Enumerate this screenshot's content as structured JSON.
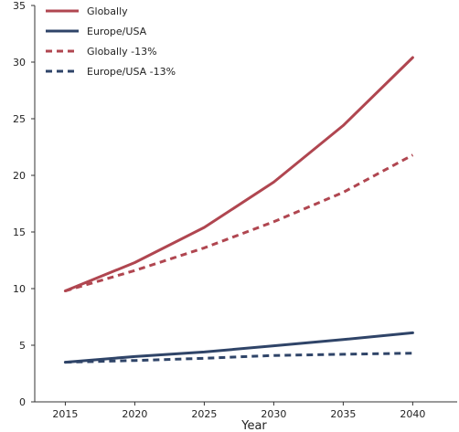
{
  "chart_data": {
    "type": "line",
    "title": "",
    "xlabel": "Year",
    "ylabel": "",
    "x": [
      2015,
      2020,
      2025,
      2030,
      2035,
      2040
    ],
    "x_ticks": [
      "2015",
      "2020",
      "2025",
      "2030",
      "2035",
      "2040"
    ],
    "ylim": [
      0,
      35
    ],
    "y_ticks": [
      "0",
      "5",
      "10",
      "15",
      "20",
      "25",
      "30",
      "35"
    ],
    "grid": false,
    "legend_position": "top-left",
    "series": [
      {
        "name": "Globally",
        "values": [
          9.8,
          12.3,
          15.4,
          19.4,
          24.4,
          30.4
        ],
        "color": "#b04650",
        "dash": false
      },
      {
        "name": "Europe/USA",
        "values": [
          3.5,
          4.0,
          4.4,
          4.95,
          5.5,
          6.1
        ],
        "color": "#2f4468",
        "dash": false
      },
      {
        "name": "Globally -13%",
        "values": [
          9.8,
          11.6,
          13.6,
          15.9,
          18.5,
          21.8
        ],
        "color": "#b04650",
        "dash": true
      },
      {
        "name": "Europe/USA -13%",
        "values": [
          3.5,
          3.65,
          3.85,
          4.1,
          4.2,
          4.3
        ],
        "color": "#2f4468",
        "dash": true
      }
    ]
  }
}
